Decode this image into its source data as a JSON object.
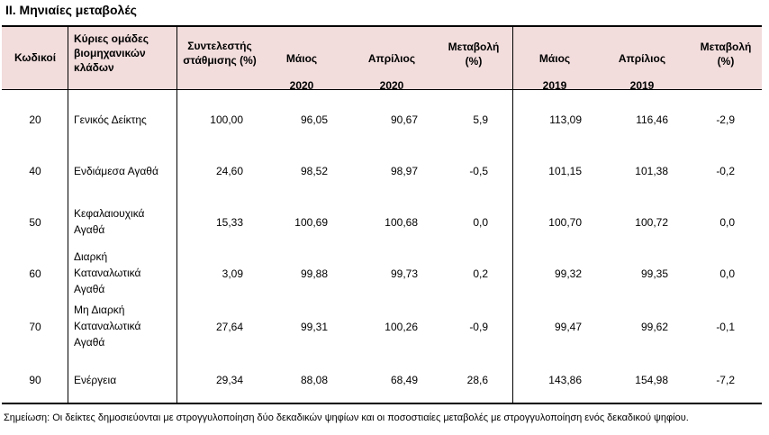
{
  "title": "ΙΙ. Μηνιαίες μεταβολές",
  "headers": {
    "code": "Κωδικοί",
    "group": [
      "Κύριες ομάδες",
      "βιομηχανικών",
      "κλάδων"
    ],
    "weight": [
      "Συντελεστής",
      "στάθμισης (%)"
    ],
    "may2020": [
      "Μάιος",
      "2020"
    ],
    "apr2020": [
      "Απρίλιος",
      "2020"
    ],
    "chg2020": [
      "Μεταβολή",
      "(%)"
    ],
    "may2019": [
      "Μάιος",
      "2019"
    ],
    "apr2019": [
      "Απρίλιος",
      "2019"
    ],
    "chg2019": [
      "Μεταβολή",
      "(%)"
    ]
  },
  "rows": [
    {
      "code": "20",
      "name": [
        "Γενικός Δείκτης"
      ],
      "weight": "100,00",
      "may2020": "96,05",
      "apr2020": "90,67",
      "chg2020": "5,9",
      "may2019": "113,09",
      "apr2019": "116,46",
      "chg2019": "-2,9"
    },
    {
      "code": "40",
      "name": [
        "Ενδιάμεσα Αγαθά"
      ],
      "weight": "24,60",
      "may2020": "98,52",
      "apr2020": "98,97",
      "chg2020": "-0,5",
      "may2019": "101,15",
      "apr2019": "101,38",
      "chg2019": "-0,2"
    },
    {
      "code": "50",
      "name": [
        "Κεφαλαιουχικά",
        "Αγαθά"
      ],
      "weight": "15,33",
      "may2020": "100,69",
      "apr2020": "100,68",
      "chg2020": "0,0",
      "may2019": "100,70",
      "apr2019": "100,72",
      "chg2019": "0,0"
    },
    {
      "code": "60",
      "name": [
        "Διαρκή",
        "Καταναλωτικά",
        "Αγαθά"
      ],
      "weight": "3,09",
      "may2020": "99,88",
      "apr2020": "99,73",
      "chg2020": "0,2",
      "may2019": "99,32",
      "apr2019": "99,35",
      "chg2019": "0,0"
    },
    {
      "code": "70",
      "name": [
        "Μη Διαρκή",
        "Καταναλωτικά",
        "Αγαθά"
      ],
      "weight": "27,64",
      "may2020": "99,31",
      "apr2020": "100,26",
      "chg2020": "-0,9",
      "may2019": "99,47",
      "apr2019": "99,62",
      "chg2019": "-0,1"
    },
    {
      "code": "90",
      "name": [
        "Ενέργεια"
      ],
      "weight": "29,34",
      "may2020": "88,08",
      "apr2020": "68,49",
      "chg2020": "28,6",
      "may2019": "143,86",
      "apr2019": "154,98",
      "chg2019": "-7,2"
    }
  ],
  "note": "Σημείωση: Οι δείκτες δημοσιεύονται με στρογγυλοποίηση δύο δεκαδικών ψηφίων και οι ποσοστιαίες μεταβολές με στρογγυλοποίηση ενός δεκαδικού ψηφίου.",
  "colors": {
    "header_bg": "#f2dcdc"
  }
}
